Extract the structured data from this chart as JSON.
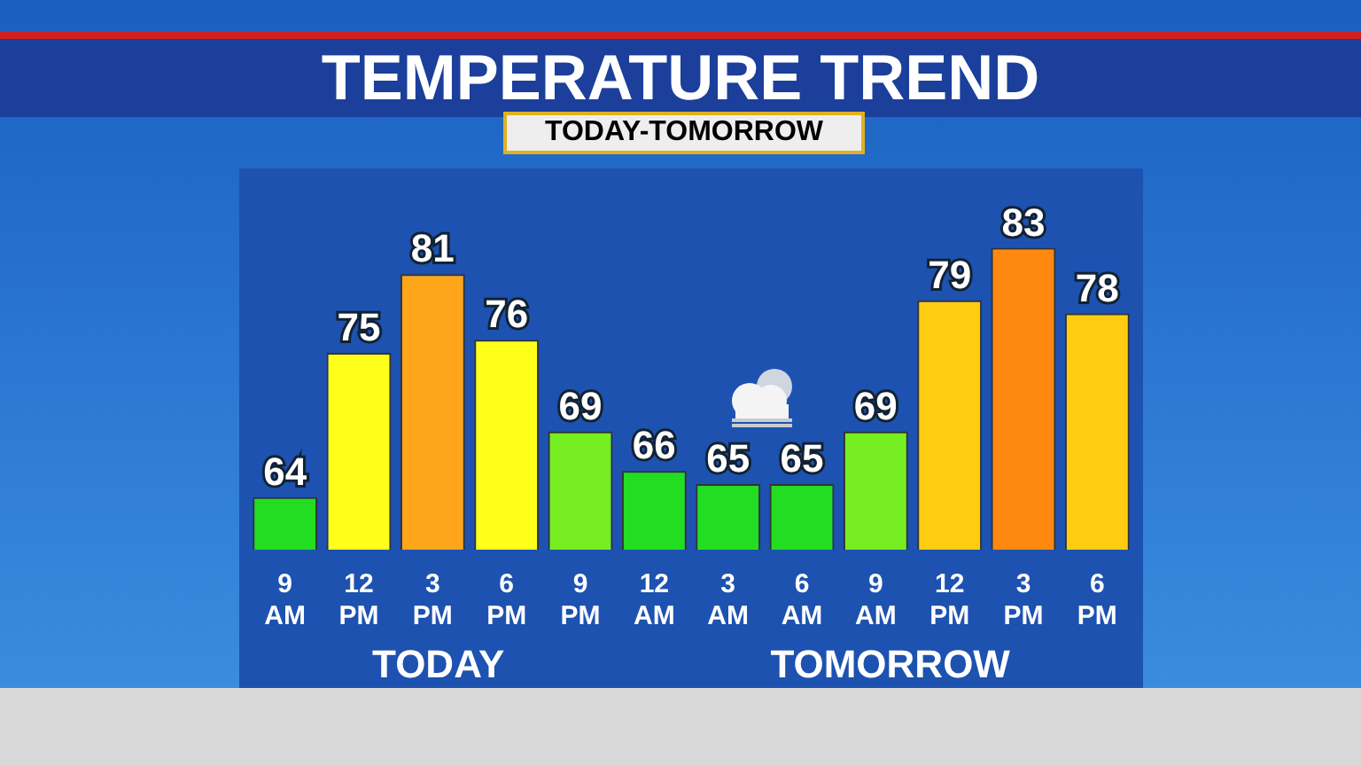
{
  "chart_data": {
    "type": "bar",
    "title": "TEMPERATURE TREND",
    "subtitle": "TODAY-TOMORROW",
    "categories": [
      "9 AM",
      "12 PM",
      "3 PM",
      "6 PM",
      "9 PM",
      "12 AM",
      "3 AM",
      "6 AM",
      "9 AM",
      "12 PM",
      "3 PM",
      "6 PM"
    ],
    "values": [
      64,
      75,
      81,
      76,
      69,
      66,
      65,
      65,
      69,
      79,
      83,
      78
    ],
    "colors": [
      "#22dd22",
      "#ffff1a",
      "#ffa51a",
      "#ffff1a",
      "#77ee22",
      "#22dd22",
      "#22dd22",
      "#22dd22",
      "#77ee22",
      "#ffcc11",
      "#ff8811",
      "#ffcc11"
    ],
    "data_labels": true,
    "tick_labels": "x",
    "grid": false,
    "legend": false,
    "annotations": [
      "TODAY",
      "TOMORROW"
    ]
  }
}
